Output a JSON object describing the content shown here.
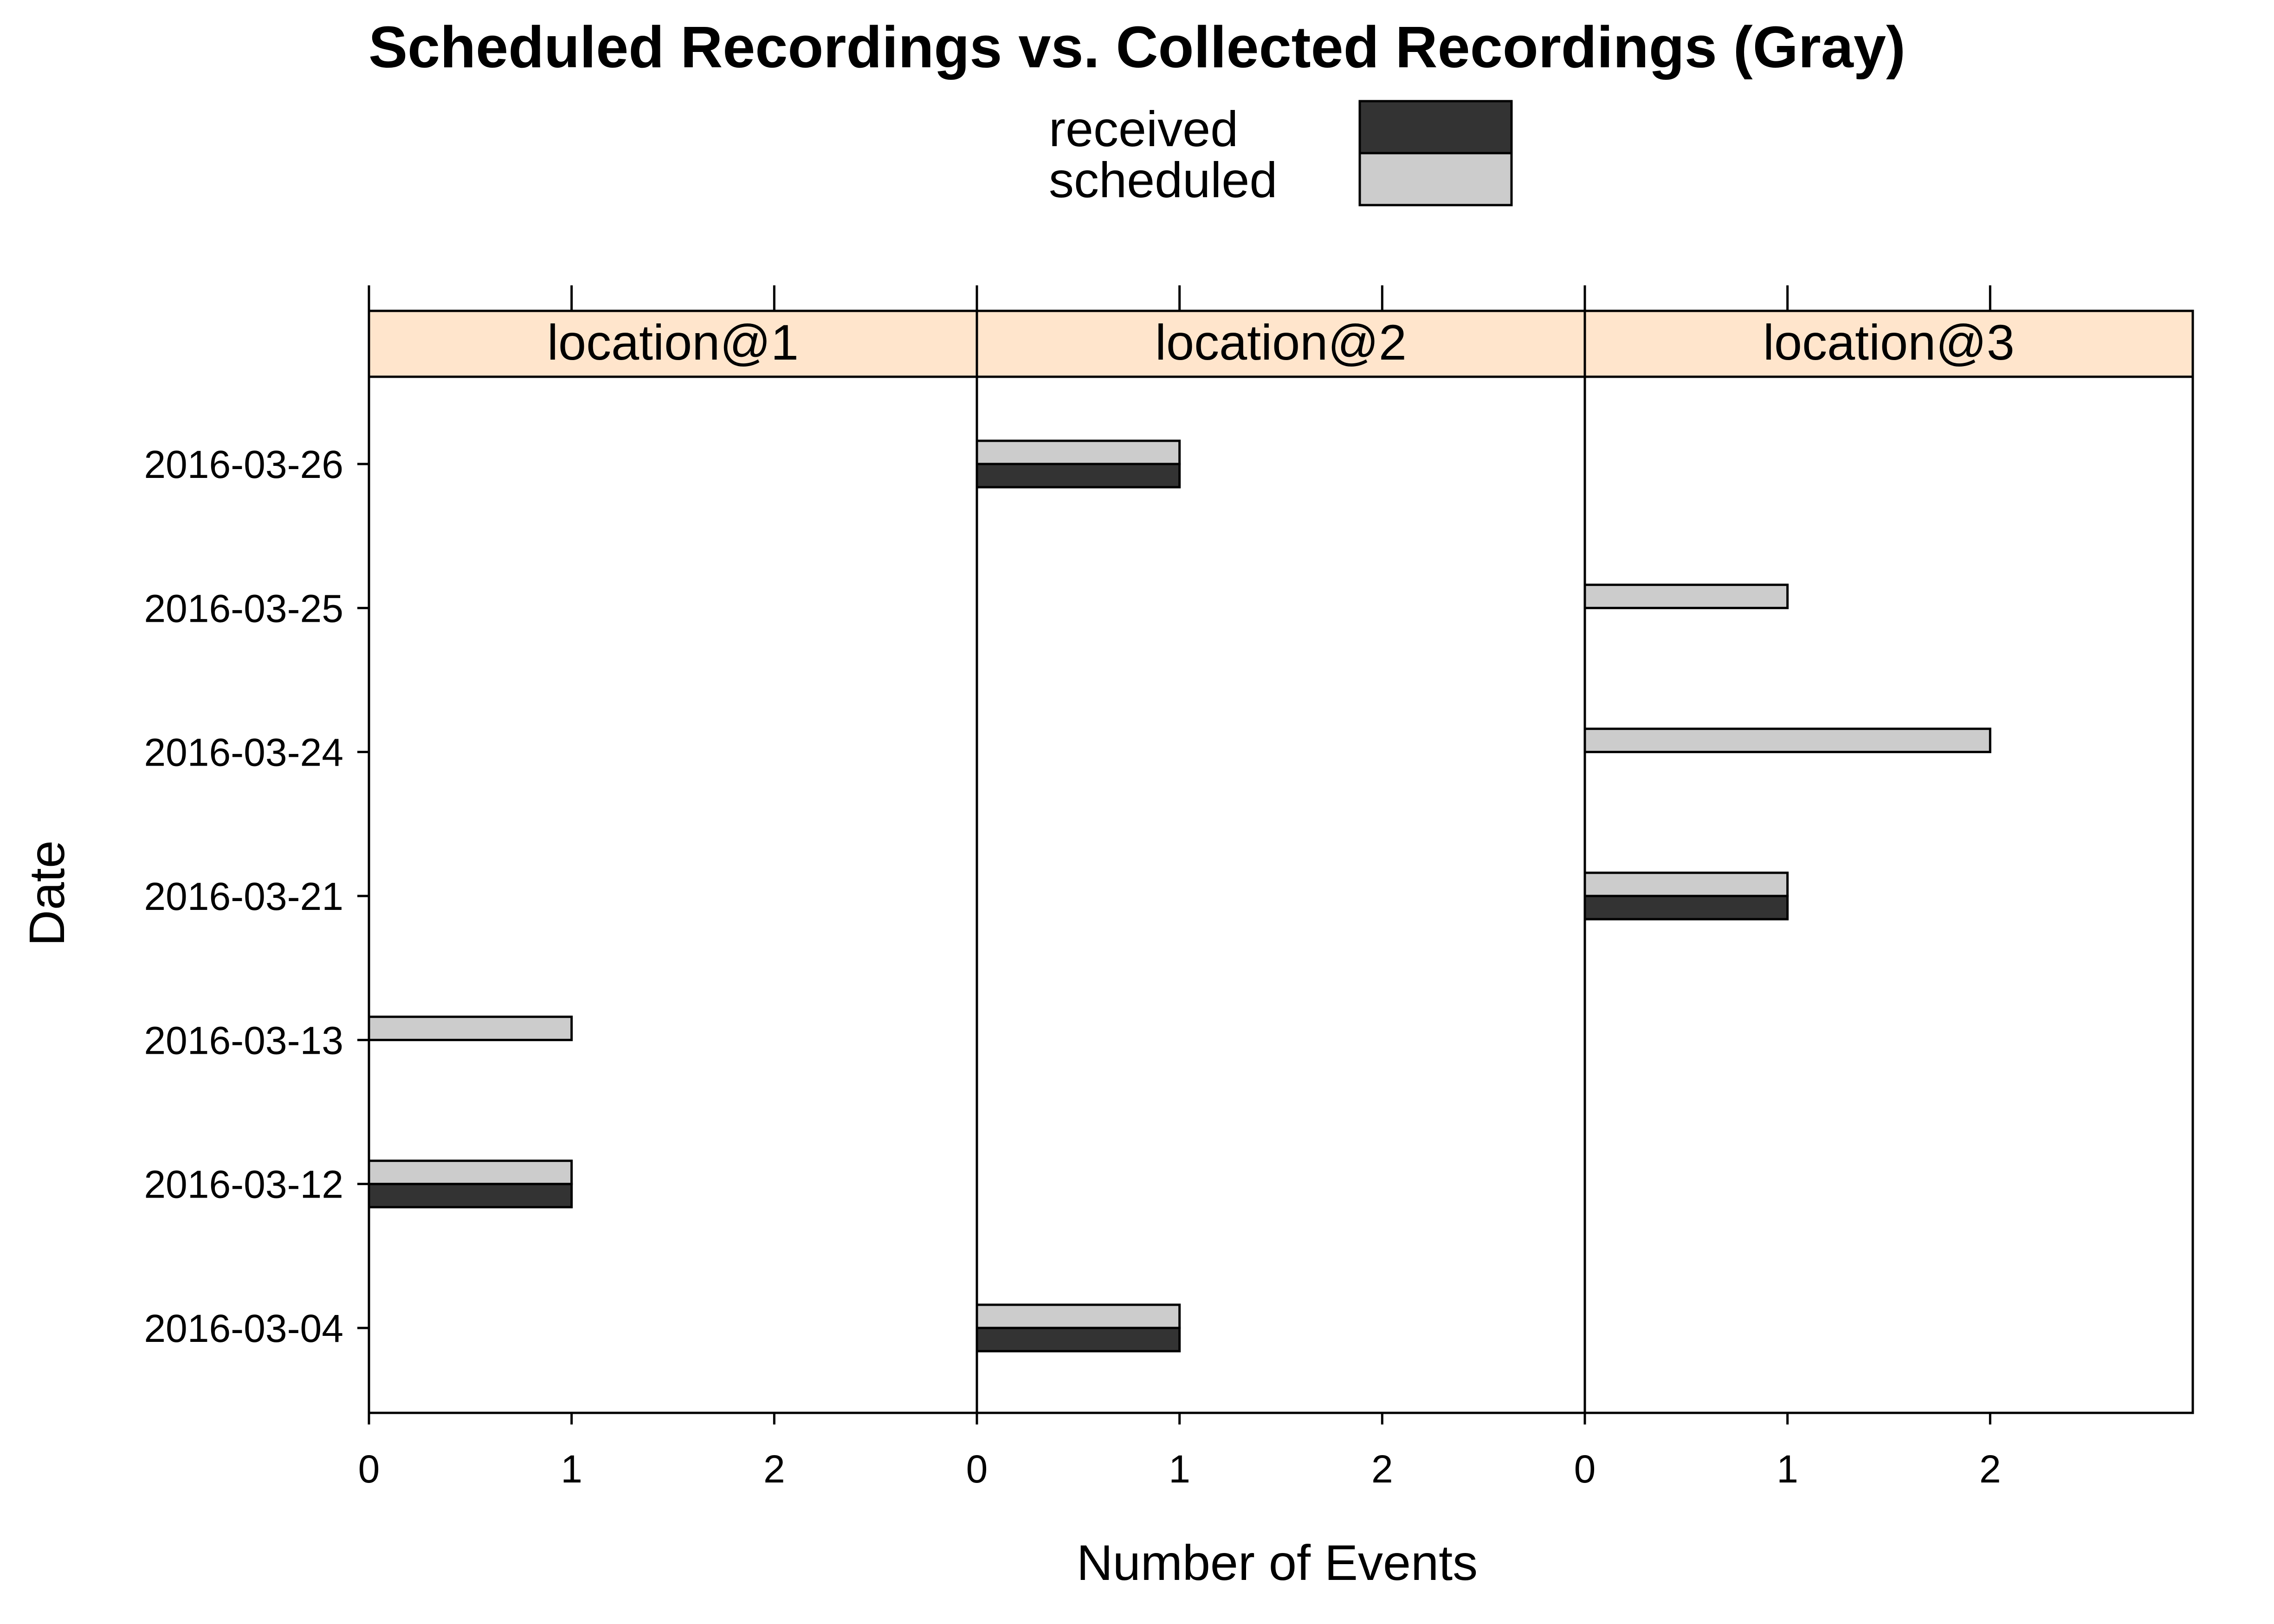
{
  "chart_data": {
    "type": "bar",
    "orientation": "horizontal",
    "title": "Scheduled Recordings vs. Collected Recordings (Gray)",
    "xlabel": "Number of Events",
    "ylabel": "Date",
    "xlim": [
      0,
      3
    ],
    "x_ticks": [
      "0",
      "1",
      "2"
    ],
    "categories": [
      "2016-03-26",
      "2016-03-25",
      "2016-03-24",
      "2016-03-21",
      "2016-03-13",
      "2016-03-12",
      "2016-03-04"
    ],
    "legend": [
      {
        "name": "received",
        "color": "#333333"
      },
      {
        "name": "scheduled",
        "color": "#cccccc"
      }
    ],
    "legend_position": "top-center",
    "strip_color": "#ffe5cc",
    "panels": [
      {
        "name": "location@1",
        "series": [
          {
            "name": "received",
            "values": [
              0,
              0,
              0,
              0,
              0,
              1,
              0
            ]
          },
          {
            "name": "scheduled",
            "values": [
              0,
              0,
              0,
              0,
              1,
              1,
              0
            ]
          }
        ]
      },
      {
        "name": "location@2",
        "series": [
          {
            "name": "received",
            "values": [
              1,
              0,
              0,
              0,
              0,
              0,
              1
            ]
          },
          {
            "name": "scheduled",
            "values": [
              1,
              0,
              0,
              0,
              0,
              0,
              1
            ]
          }
        ]
      },
      {
        "name": "location@3",
        "series": [
          {
            "name": "received",
            "values": [
              0,
              0,
              0,
              1,
              0,
              0,
              0
            ]
          },
          {
            "name": "scheduled",
            "values": [
              0,
              1,
              2,
              1,
              0,
              0,
              0
            ]
          }
        ]
      }
    ]
  }
}
